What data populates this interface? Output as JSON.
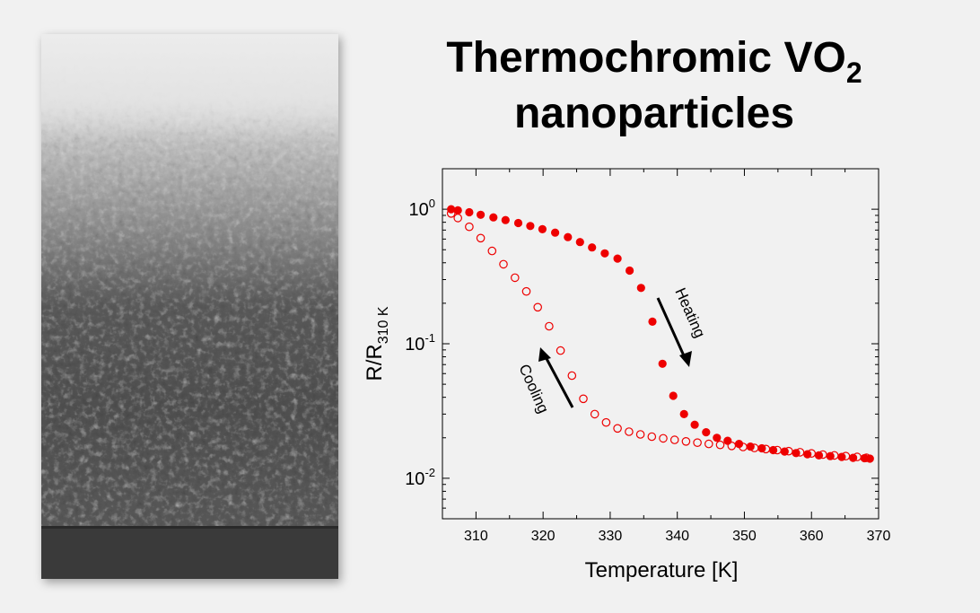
{
  "title": {
    "line1_main": "Thermochromic VO",
    "line1_subscript": "2",
    "line2": "nanoparticles"
  },
  "colors": {
    "background": "#f1f1f1",
    "marker": "#ee0000",
    "axis": "#000000"
  },
  "chart_data": {
    "type": "scatter",
    "title": "",
    "xlabel": "Temperature [K]",
    "ylabel_main": "R/R",
    "ylabel_subscript": "310 K",
    "xlim": [
      305,
      370
    ],
    "ylim": [
      0.005,
      2.0
    ],
    "yscale": "log",
    "x_ticks": [
      310,
      320,
      330,
      340,
      350,
      360,
      370
    ],
    "y_ticks": [
      {
        "value": 1,
        "base": "10",
        "exp": "0"
      },
      {
        "value": 0.1,
        "base": "10",
        "exp": "-1"
      },
      {
        "value": 0.01,
        "base": "10",
        "exp": "-2"
      }
    ],
    "grid": false,
    "legend": "none",
    "annotations": [
      {
        "text": "Heating",
        "arrow": "down"
      },
      {
        "text": "Cooling",
        "arrow": "up"
      }
    ],
    "series": [
      {
        "marker": "filled-circle",
        "x": [
          306.3,
          307.3,
          309.0,
          310.7,
          312.6,
          314.4,
          316.3,
          318.1,
          319.9,
          321.8,
          323.7,
          325.5,
          327.3,
          329.2,
          331.1,
          332.9,
          334.6,
          336.3,
          337.8,
          339.4,
          341.0,
          342.6,
          344.3,
          345.9,
          347.5,
          349.2,
          350.9,
          352.6,
          354.3,
          356.0,
          357.7,
          359.4,
          361.1,
          362.8,
          364.5,
          366.2,
          367.9,
          368.7
        ],
        "y": [
          1.0,
          0.98,
          0.95,
          0.91,
          0.87,
          0.83,
          0.79,
          0.75,
          0.71,
          0.67,
          0.62,
          0.57,
          0.52,
          0.47,
          0.43,
          0.35,
          0.26,
          0.146,
          0.071,
          0.041,
          0.03,
          0.025,
          0.022,
          0.02,
          0.019,
          0.018,
          0.0172,
          0.0167,
          0.0162,
          0.0158,
          0.0154,
          0.0151,
          0.0148,
          0.0146,
          0.0144,
          0.0142,
          0.0141,
          0.014
        ]
      },
      {
        "marker": "open-circle",
        "x": [
          306.3,
          307.3,
          309.0,
          310.7,
          312.4,
          314.1,
          315.8,
          317.5,
          319.2,
          320.9,
          322.6,
          324.3,
          326.0,
          327.7,
          329.4,
          331.1,
          332.8,
          334.5,
          336.2,
          337.9,
          339.6,
          341.3,
          343.0,
          344.7,
          346.4,
          348.1,
          349.8,
          351.5,
          353.2,
          354.9,
          356.6,
          358.3,
          360.0,
          361.7,
          363.4,
          365.1,
          366.8,
          368.2
        ],
        "y": [
          0.93,
          0.86,
          0.74,
          0.61,
          0.49,
          0.39,
          0.31,
          0.245,
          0.187,
          0.135,
          0.089,
          0.058,
          0.039,
          0.03,
          0.026,
          0.0235,
          0.0222,
          0.0212,
          0.0204,
          0.0198,
          0.0193,
          0.0188,
          0.0184,
          0.018,
          0.0177,
          0.0174,
          0.0171,
          0.0168,
          0.0165,
          0.0162,
          0.0159,
          0.0156,
          0.0153,
          0.015,
          0.0148,
          0.0146,
          0.0144,
          0.0142
        ]
      }
    ]
  }
}
